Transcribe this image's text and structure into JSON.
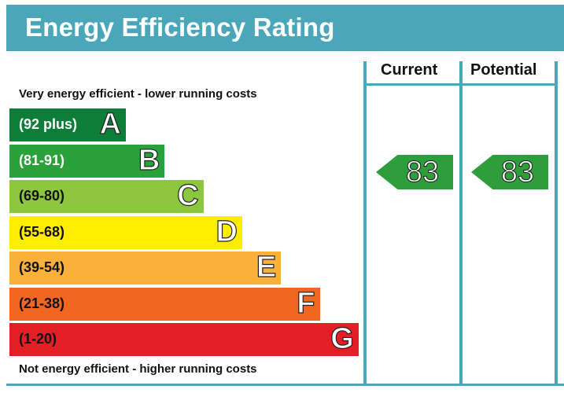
{
  "title": "Energy Efficiency Rating",
  "columns": {
    "current": "Current",
    "potential": "Potential"
  },
  "top_caption": "Very energy efficient - lower running costs",
  "bottom_caption": "Not energy efficient - higher running costs",
  "chart_data": {
    "type": "bar",
    "title": "Energy Efficiency Rating",
    "categories": [
      "A",
      "B",
      "C",
      "D",
      "E",
      "F",
      "G"
    ],
    "bands": [
      {
        "letter": "A",
        "range": "(92 plus)",
        "color": "#0f7d3a",
        "text_color": "#ffffff"
      },
      {
        "letter": "B",
        "range": "(81-91)",
        "color": "#2aa13b",
        "text_color": "#ffffff"
      },
      {
        "letter": "C",
        "range": "(69-80)",
        "color": "#8dc63f",
        "text_color": "#111111"
      },
      {
        "letter": "D",
        "range": "(55-68)",
        "color": "#ffed00",
        "text_color": "#111111"
      },
      {
        "letter": "E",
        "range": "(39-54)",
        "color": "#fbb03b",
        "text_color": "#111111"
      },
      {
        "letter": "F",
        "range": "(21-38)",
        "color": "#f26522",
        "text_color": "#111111"
      },
      {
        "letter": "G",
        "range": "(1-20)",
        "color": "#e31e24",
        "text_color": "#111111"
      }
    ],
    "current": {
      "value": 83,
      "band": "B",
      "color": "#2e9e3d"
    },
    "potential": {
      "value": 83,
      "band": "B",
      "color": "#2e9e3d"
    }
  },
  "colors": {
    "accent": "#4aa7b9"
  }
}
